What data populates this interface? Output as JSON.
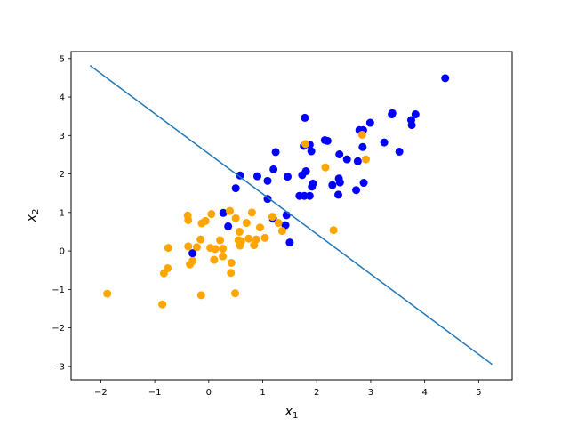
{
  "chart_data": {
    "type": "scatter",
    "title": "",
    "xlabel": "x",
    "xlabel_sub": "1",
    "ylabel": "x",
    "ylabel_sub": "2",
    "xlim": [
      -2.55,
      5.62
    ],
    "ylim": [
      -3.35,
      5.18
    ],
    "xticks": [
      -2,
      -1,
      0,
      1,
      2,
      3,
      4,
      5
    ],
    "yticks": [
      -3,
      -2,
      -1,
      0,
      1,
      2,
      3,
      4,
      5
    ],
    "xtick_labels": [
      "−2",
      "−1",
      "0",
      "1",
      "2",
      "3",
      "4",
      "5"
    ],
    "ytick_labels": [
      "−3",
      "−2",
      "−1",
      "0",
      "1",
      "2",
      "3",
      "4",
      "5"
    ],
    "grid": false,
    "legend": false,
    "series": [
      {
        "color": "#0000ff",
        "points": [
          [
            4.38,
            4.49
          ],
          [
            3.4,
            3.58
          ],
          [
            3.39,
            3.55
          ],
          [
            3.83,
            3.55
          ],
          [
            3.75,
            3.4
          ],
          [
            3.76,
            3.27
          ],
          [
            2.99,
            3.33
          ],
          [
            2.79,
            3.14
          ],
          [
            2.86,
            3.14
          ],
          [
            3.25,
            2.82
          ],
          [
            3.53,
            2.58
          ],
          [
            2.85,
            2.7
          ],
          [
            2.76,
            2.33
          ],
          [
            2.56,
            2.38
          ],
          [
            2.42,
            2.51
          ],
          [
            2.87,
            1.77
          ],
          [
            2.73,
            1.58
          ],
          [
            2.41,
            1.88
          ],
          [
            2.43,
            1.78
          ],
          [
            2.29,
            1.71
          ],
          [
            2.4,
            1.46
          ],
          [
            2.15,
            2.88
          ],
          [
            2.2,
            2.86
          ],
          [
            1.78,
            3.46
          ],
          [
            1.87,
            2.76
          ],
          [
            1.76,
            2.73
          ],
          [
            1.9,
            2.59
          ],
          [
            1.24,
            2.57
          ],
          [
            1.2,
            2.12
          ],
          [
            1.8,
            2.07
          ],
          [
            1.73,
            1.97
          ],
          [
            1.46,
            1.93
          ],
          [
            0.9,
            1.94
          ],
          [
            0.58,
            1.96
          ],
          [
            1.09,
            1.82
          ],
          [
            1.93,
            1.75
          ],
          [
            1.91,
            1.67
          ],
          [
            0.5,
            1.63
          ],
          [
            1.68,
            1.43
          ],
          [
            1.77,
            1.43
          ],
          [
            1.87,
            1.43
          ],
          [
            1.09,
            1.35
          ],
          [
            0.27,
            0.99
          ],
          [
            1.19,
            0.84
          ],
          [
            1.44,
            0.93
          ],
          [
            1.42,
            0.67
          ],
          [
            0.36,
            0.64
          ],
          [
            1.5,
            0.22
          ],
          [
            -0.3,
            -0.06
          ]
        ]
      },
      {
        "color": "#ffa500",
        "points": [
          [
            2.84,
            3.02
          ],
          [
            2.91,
            2.38
          ],
          [
            2.16,
            2.17
          ],
          [
            1.79,
            2.78
          ],
          [
            2.31,
            0.54
          ],
          [
            1.29,
            0.73
          ],
          [
            1.36,
            0.52
          ],
          [
            1.18,
            0.89
          ],
          [
            1.04,
            0.34
          ],
          [
            0.95,
            0.61
          ],
          [
            0.8,
            1.0
          ],
          [
            0.7,
            0.73
          ],
          [
            0.74,
            0.32
          ],
          [
            0.84,
            0.15
          ],
          [
            0.88,
            0.3
          ],
          [
            0.6,
            0.25
          ],
          [
            0.58,
            0.14
          ],
          [
            0.55,
            0.28
          ],
          [
            0.57,
            0.5
          ],
          [
            0.5,
            0.85
          ],
          [
            0.39,
            1.04
          ],
          [
            0.05,
            0.96
          ],
          [
            -0.06,
            0.78
          ],
          [
            -0.13,
            0.72
          ],
          [
            -0.39,
            0.92
          ],
          [
            -0.38,
            0.8
          ],
          [
            0.21,
            0.28
          ],
          [
            0.26,
            0.06
          ],
          [
            0.12,
            0.05
          ],
          [
            0.03,
            0.08
          ],
          [
            -0.15,
            0.3
          ],
          [
            -0.22,
            0.1
          ],
          [
            -0.38,
            0.12
          ],
          [
            -0.75,
            0.08
          ],
          [
            -0.3,
            -0.26
          ],
          [
            -0.35,
            -0.35
          ],
          [
            0.1,
            -0.23
          ],
          [
            0.26,
            -0.14
          ],
          [
            0.42,
            -0.31
          ],
          [
            -0.76,
            -0.45
          ],
          [
            -0.83,
            -0.58
          ],
          [
            0.41,
            -0.57
          ],
          [
            -0.14,
            -1.15
          ],
          [
            0.49,
            -1.1
          ],
          [
            -1.88,
            -1.11
          ],
          [
            -0.86,
            -1.39
          ]
        ]
      }
    ],
    "lines": [
      {
        "color": "#1f77b4",
        "x": [
          -2.2,
          5.25
        ],
        "y": [
          4.82,
          -2.95
        ]
      }
    ]
  }
}
